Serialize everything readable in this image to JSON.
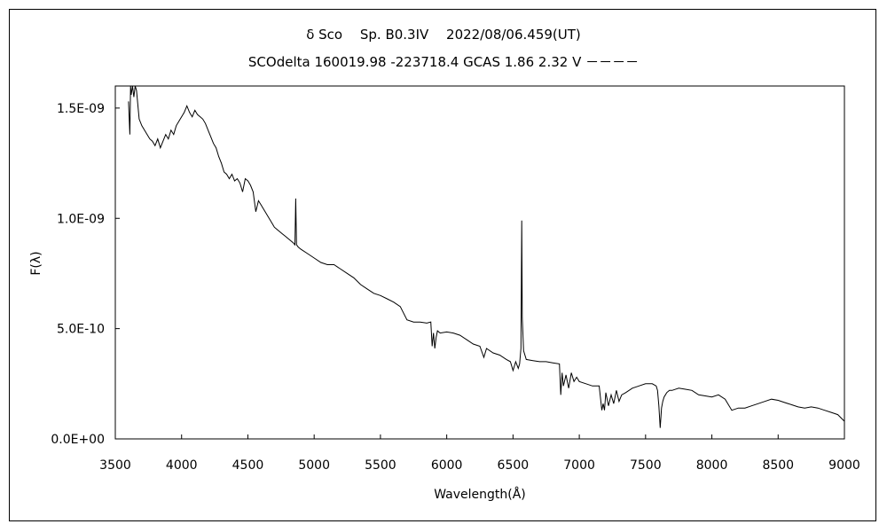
{
  "chart_data": {
    "type": "line",
    "title": "δ Sco　 Sp. B0.3IV 　2022/08/06.459(UT)",
    "subtitle": "SCOdelta 160019.98 -223718.4 GCAS 1.86 2.32 V －－－－",
    "xlabel": "Wavelength(Å)",
    "ylabel": "F(λ)",
    "xlim": [
      3500,
      9000
    ],
    "ylim": [
      0,
      1.6e-09
    ],
    "x_ticks": [
      3500,
      4000,
      4500,
      5000,
      5500,
      6000,
      6500,
      7000,
      7500,
      8000,
      8500,
      9000
    ],
    "x_tick_labels": [
      "3500",
      "4000",
      "4500",
      "5000",
      "5500",
      "6000",
      "6500",
      "7000",
      "7500",
      "8000",
      "8500",
      "9000"
    ],
    "y_ticks": [
      0,
      5e-10,
      1e-09,
      1.5e-09
    ],
    "y_tick_labels": [
      "0.0E+00",
      "5.0E-10",
      "1.0E-09",
      "1.5E-09"
    ],
    "grid": false,
    "series": [
      {
        "color": "#000000",
        "x": [
          3600,
          3610,
          3615,
          3620,
          3630,
          3640,
          3650,
          3660,
          3680,
          3700,
          3720,
          3740,
          3760,
          3780,
          3800,
          3820,
          3840,
          3860,
          3880,
          3900,
          3920,
          3940,
          3960,
          3980,
          4000,
          4020,
          4040,
          4060,
          4080,
          4100,
          4120,
          4140,
          4160,
          4180,
          4200,
          4220,
          4240,
          4260,
          4280,
          4300,
          4320,
          4340,
          4360,
          4380,
          4400,
          4420,
          4440,
          4460,
          4480,
          4500,
          4520,
          4540,
          4560,
          4580,
          4600,
          4620,
          4640,
          4660,
          4680,
          4700,
          4720,
          4740,
          4760,
          4780,
          4800,
          4820,
          4840,
          4855,
          4861,
          4867,
          4880,
          4900,
          4950,
          5000,
          5050,
          5100,
          5150,
          5200,
          5250,
          5300,
          5350,
          5400,
          5450,
          5500,
          5550,
          5600,
          5650,
          5700,
          5750,
          5800,
          5850,
          5880,
          5890,
          5900,
          5910,
          5920,
          5930,
          5950,
          6000,
          6050,
          6100,
          6150,
          6200,
          6250,
          6280,
          6300,
          6350,
          6400,
          6450,
          6480,
          6500,
          6520,
          6540,
          6550,
          6560,
          6563,
          6566,
          6570,
          6580,
          6600,
          6650,
          6700,
          6750,
          6800,
          6850,
          6860,
          6870,
          6880,
          6900,
          6920,
          6940,
          6960,
          6980,
          7000,
          7050,
          7100,
          7150,
          7170,
          7180,
          7190,
          7200,
          7220,
          7240,
          7260,
          7280,
          7300,
          7320,
          7350,
          7400,
          7450,
          7500,
          7550,
          7580,
          7590,
          7600,
          7610,
          7620,
          7630,
          7640,
          7650,
          7660,
          7680,
          7700,
          7750,
          7800,
          7850,
          7900,
          7950,
          8000,
          8050,
          8100,
          8150,
          8200,
          8250,
          8300,
          8350,
          8400,
          8450,
          8500,
          8550,
          8600,
          8650,
          8700,
          8750,
          8800,
          8850,
          8900,
          8950,
          9000
        ],
        "y": [
          1.53e-09,
          1.38e-09,
          1.6e-09,
          1.56e-09,
          1.6e-09,
          1.55e-09,
          1.6e-09,
          1.58e-09,
          1.45e-09,
          1.42e-09,
          1.4e-09,
          1.38e-09,
          1.36e-09,
          1.35e-09,
          1.33e-09,
          1.36e-09,
          1.32e-09,
          1.35e-09,
          1.38e-09,
          1.36e-09,
          1.4e-09,
          1.38e-09,
          1.42e-09,
          1.44e-09,
          1.46e-09,
          1.48e-09,
          1.51e-09,
          1.48e-09,
          1.46e-09,
          1.49e-09,
          1.47e-09,
          1.46e-09,
          1.45e-09,
          1.43e-09,
          1.4e-09,
          1.37e-09,
          1.34e-09,
          1.32e-09,
          1.28e-09,
          1.25e-09,
          1.21e-09,
          1.2e-09,
          1.18e-09,
          1.2e-09,
          1.17e-09,
          1.18e-09,
          1.16e-09,
          1.12e-09,
          1.18e-09,
          1.17e-09,
          1.15e-09,
          1.12e-09,
          1.03e-09,
          1.08e-09,
          1.06e-09,
          1.04e-09,
          1.02e-09,
          1e-09,
          9.8e-10,
          9.6e-10,
          9.5e-10,
          9.4e-10,
          9.3e-10,
          9.2e-10,
          9.1e-10,
          9e-10,
          8.9e-10,
          8.8e-10,
          1.09e-09,
          8.8e-10,
          8.7e-10,
          8.6e-10,
          8.4e-10,
          8.2e-10,
          8e-10,
          7.9e-10,
          7.9e-10,
          7.7e-10,
          7.5e-10,
          7.3e-10,
          7e-10,
          6.8e-10,
          6.6e-10,
          6.5e-10,
          6.35e-10,
          6.2e-10,
          6e-10,
          5.4e-10,
          5.3e-10,
          5.3e-10,
          5.25e-10,
          5.3e-10,
          4.2e-10,
          4.8e-10,
          4.1e-10,
          4.6e-10,
          4.9e-10,
          4.8e-10,
          4.85e-10,
          4.8e-10,
          4.7e-10,
          4.5e-10,
          4.3e-10,
          4.2e-10,
          3.7e-10,
          4.1e-10,
          3.9e-10,
          3.8e-10,
          3.6e-10,
          3.5e-10,
          3.1e-10,
          3.5e-10,
          3.2e-10,
          3.4e-10,
          4.1e-10,
          7.2e-10,
          9.9e-10,
          5.5e-10,
          4e-10,
          3.6e-10,
          3.55e-10,
          3.5e-10,
          3.5e-10,
          3.45e-10,
          3.4e-10,
          2e-10,
          3e-10,
          2.4e-10,
          2.9e-10,
          2.3e-10,
          3e-10,
          2.6e-10,
          2.8e-10,
          2.6e-10,
          2.5e-10,
          2.4e-10,
          2.4e-10,
          1.3e-10,
          1.6e-10,
          1.3e-10,
          2.1e-10,
          1.5e-10,
          2e-10,
          1.6e-10,
          2.2e-10,
          1.7e-10,
          2e-10,
          2.1e-10,
          2.3e-10,
          2.4e-10,
          2.5e-10,
          2.5e-10,
          2.4e-10,
          2.2e-10,
          1.5e-10,
          5e-11,
          1.4e-10,
          1.7e-10,
          1.9e-10,
          2e-10,
          2.1e-10,
          2.2e-10,
          2.2e-10,
          2.3e-10,
          2.25e-10,
          2.2e-10,
          2e-10,
          1.95e-10,
          1.9e-10,
          2e-10,
          1.8e-10,
          1.3e-10,
          1.4e-10,
          1.4e-10,
          1.5e-10,
          1.6e-10,
          1.7e-10,
          1.8e-10,
          1.75e-10,
          1.65e-10,
          1.55e-10,
          1.45e-10,
          1.4e-10,
          1.45e-10,
          1.4e-10,
          1.3e-10,
          1.2e-10,
          1.1e-10,
          8e-11
        ]
      }
    ]
  }
}
